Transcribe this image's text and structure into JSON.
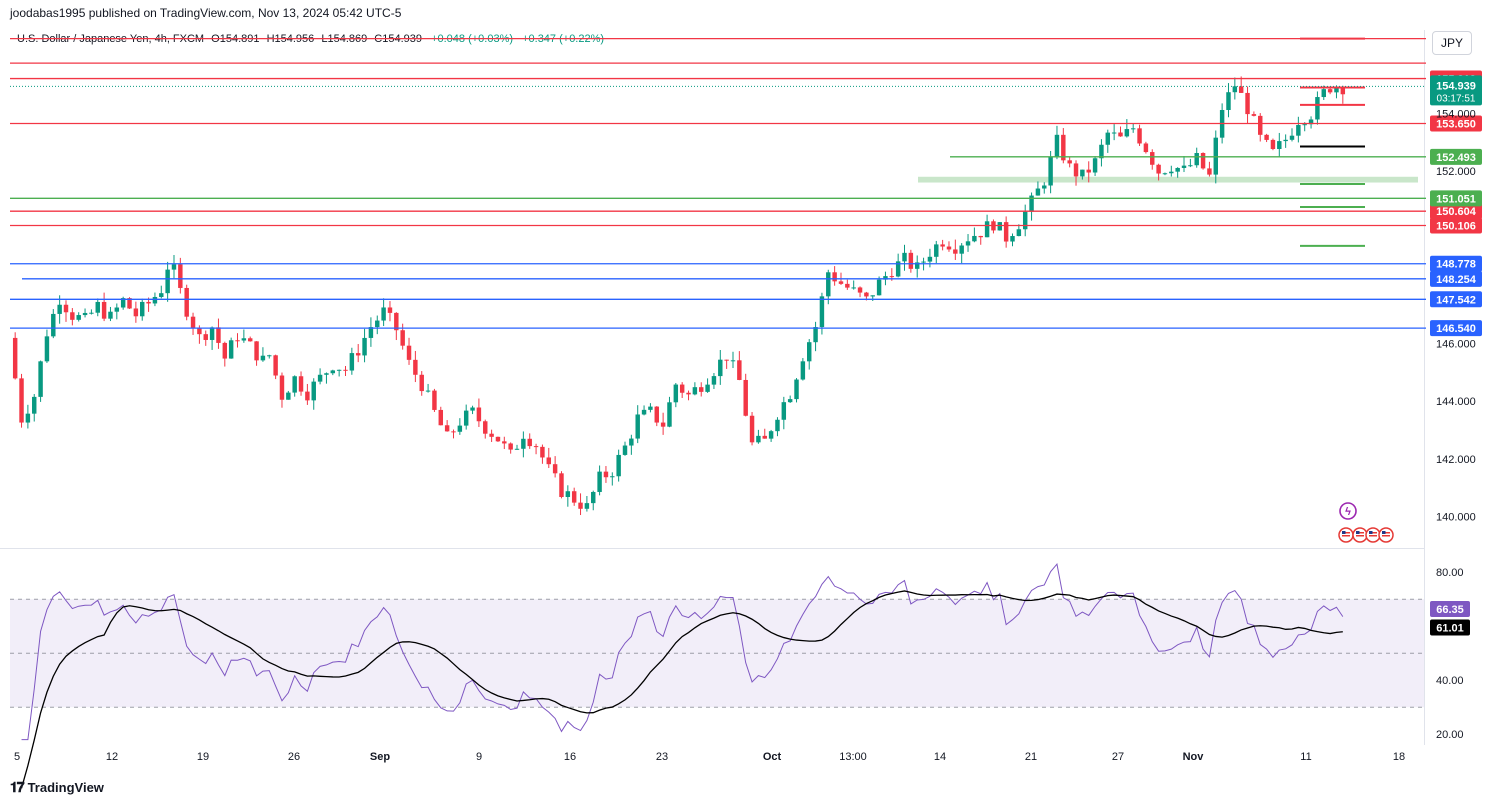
{
  "header": {
    "published": "joodabas1995 published on TradingView.com, Nov 13, 2024 05:42 UTC-5"
  },
  "legend": {
    "symbol": "U.S. Dollar / Japanese Yen, 4h, FXCM",
    "open": "O154.891",
    "high": "H154.956",
    "low": "L154.869",
    "close": "C154.939",
    "change": "+0.048 (+0.03%)",
    "change2": "+0.347 (+0.22%)"
  },
  "currency": "JPY",
  "footer": {
    "brand": "TradingView"
  },
  "colors": {
    "up": "#089981",
    "down": "#f23645",
    "resistance": "#f23645",
    "support": "#4caf50",
    "blue_level": "#2962ff",
    "rsi": "#7e57c2",
    "rsi_ma": "#000000"
  },
  "chart_data": [
    {
      "type": "candlestick",
      "ylim": [
        138.9,
        156.9
      ],
      "y_ticks": [
        140,
        142,
        144,
        146,
        152,
        154
      ],
      "y_tick_labels": [
        "140.000",
        "142.000",
        "144.000",
        "146.000",
        "152.000",
        "154.000"
      ],
      "x_ticks": [
        "5",
        "12",
        "19",
        "26",
        "Sep",
        "9",
        "16",
        "23",
        "Oct",
        "13:00",
        "14",
        "21",
        "27",
        "Nov",
        "11",
        "18"
      ],
      "price_path": [
        [
          0,
          146.2
        ],
        [
          2,
          143.4
        ],
        [
          4,
          144.2
        ],
        [
          6,
          146.4
        ],
        [
          8,
          147.6
        ],
        [
          10,
          147.0
        ],
        [
          12,
          146.8
        ],
        [
          14,
          147.3
        ],
        [
          16,
          146.9
        ],
        [
          18,
          147.5
        ],
        [
          20,
          147.0
        ],
        [
          22,
          147.4
        ],
        [
          24,
          147.9
        ],
        [
          25,
          148.7
        ],
        [
          26,
          148.5
        ],
        [
          27,
          147.8
        ],
        [
          28,
          147.2
        ],
        [
          30,
          146.2
        ],
        [
          32,
          146.6
        ],
        [
          34,
          145.5
        ],
        [
          36,
          146.3
        ],
        [
          38,
          145.9
        ],
        [
          40,
          145.4
        ],
        [
          41,
          145.6
        ],
        [
          43,
          144.2
        ],
        [
          45,
          144.8
        ],
        [
          47,
          144.3
        ],
        [
          49,
          144.8
        ],
        [
          51,
          145.3
        ],
        [
          53,
          145.1
        ],
        [
          55,
          145.8
        ],
        [
          57,
          146.6
        ],
        [
          59,
          147.1
        ],
        [
          61,
          146.5
        ],
        [
          63,
          145.3
        ],
        [
          65,
          144.6
        ],
        [
          67,
          143.6
        ],
        [
          69,
          142.7
        ],
        [
          71,
          143.3
        ],
        [
          73,
          143.6
        ],
        [
          75,
          143.1
        ],
        [
          77,
          142.7
        ],
        [
          79,
          142.1
        ],
        [
          81,
          142.9
        ],
        [
          83,
          142.5
        ],
        [
          85,
          141.6
        ],
        [
          87,
          140.9
        ],
        [
          89,
          140.6
        ],
        [
          91,
          140.3
        ],
        [
          93,
          141.3
        ],
        [
          95,
          141.6
        ],
        [
          97,
          142.4
        ],
        [
          99,
          143.4
        ],
        [
          101,
          143.6
        ],
        [
          103,
          143.2
        ],
        [
          105,
          144.6
        ],
        [
          107,
          144.2
        ],
        [
          109,
          144.6
        ],
        [
          111,
          145.1
        ],
        [
          113,
          145.6
        ],
        [
          115,
          144.7
        ],
        [
          117,
          142.5
        ],
        [
          119,
          142.6
        ],
        [
          121,
          143.6
        ],
        [
          123,
          144.3
        ],
        [
          125,
          145.6
        ],
        [
          127,
          146.6
        ],
        [
          129,
          148.5
        ],
        [
          131,
          148.1
        ],
        [
          133,
          147.8
        ],
        [
          135,
          147.5
        ],
        [
          137,
          148.1
        ],
        [
          139,
          148.6
        ],
        [
          141,
          148.9
        ],
        [
          143,
          148.6
        ],
        [
          145,
          149.2
        ],
        [
          147,
          149.6
        ],
        [
          149,
          149.4
        ],
        [
          151,
          149.7
        ],
        [
          153,
          149.9
        ],
        [
          155,
          150.2
        ],
        [
          157,
          149.7
        ],
        [
          159,
          150.2
        ],
        [
          161,
          150.9
        ],
        [
          163,
          151.7
        ],
        [
          165,
          153.0
        ],
        [
          167,
          152.1
        ],
        [
          169,
          151.8
        ],
        [
          171,
          152.3
        ],
        [
          173,
          153.3
        ],
        [
          175,
          153.1
        ],
        [
          177,
          153.5
        ],
        [
          179,
          152.8
        ],
        [
          181,
          152.0
        ],
        [
          183,
          152.2
        ],
        [
          185,
          152.0
        ],
        [
          187,
          152.4
        ],
        [
          189,
          151.8
        ],
        [
          191,
          154.2
        ],
        [
          193,
          155.0
        ],
        [
          195,
          154.2
        ],
        [
          197,
          153.1
        ],
        [
          199,
          152.6
        ],
        [
          201,
          153.1
        ],
        [
          203,
          153.8
        ],
        [
          205,
          154.0
        ],
        [
          207,
          154.7
        ],
        [
          208,
          154.94
        ]
      ],
      "resistance_levels": [
        155.213,
        153.65,
        150.604,
        150.106
      ],
      "resistance_labels": [
        "155.213",
        "153.650",
        "150.604",
        "150.106"
      ],
      "upper_lines": [
        156.6,
        155.75
      ],
      "support_levels": [
        152.493,
        151.051
      ],
      "support_labels": [
        "152.493",
        "151.051"
      ],
      "blue_levels": [
        148.778,
        148.254,
        147.542,
        146.54
      ],
      "blue_labels": [
        "148.778",
        "148.254",
        "147.542",
        "146.540"
      ],
      "current_price": "154.939",
      "countdown": "03:17:51",
      "partial_tick": "154.000"
    },
    {
      "type": "line",
      "name": "RSI",
      "ylim": [
        16,
        86
      ],
      "y_ticks": [
        20,
        40,
        80
      ],
      "y_tick_labels": [
        "20.00",
        "40.00",
        "80.00"
      ],
      "band": [
        30,
        70
      ],
      "midline": 50,
      "rsi_value": "66.35",
      "ma_value": "61.01"
    }
  ]
}
